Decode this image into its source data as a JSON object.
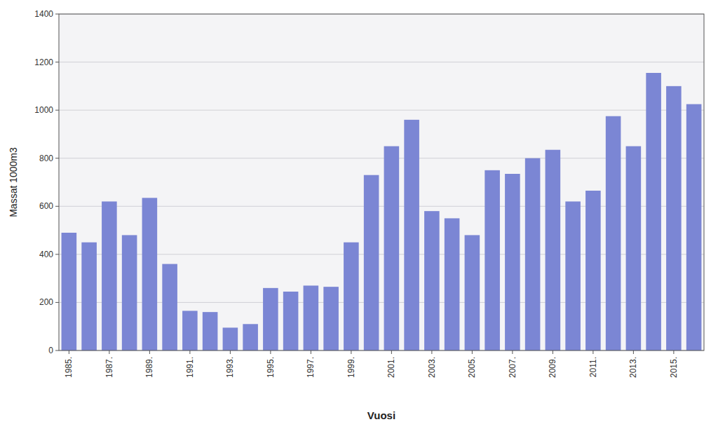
{
  "chart_data": {
    "type": "bar",
    "x_label": "Vuosi",
    "y_label": "Massat 1000m3",
    "categories": [
      "1985.",
      null,
      "1987.",
      null,
      "1989.",
      null,
      "1991.",
      null,
      "1993.",
      null,
      "1995.",
      null,
      "1997.",
      null,
      "1999.",
      null,
      "2001.",
      null,
      "2003.",
      null,
      "2005.",
      null,
      "2007.",
      null,
      "2009.",
      null,
      "2011.",
      null,
      "2013.",
      null,
      "2015.",
      null
    ],
    "values": [
      490,
      450,
      620,
      480,
      635,
      360,
      165,
      160,
      95,
      110,
      260,
      245,
      270,
      265,
      450,
      730,
      850,
      960,
      580,
      550,
      480,
      750,
      735,
      800,
      835,
      620,
      665,
      975,
      850,
      1155,
      1100,
      1025
    ],
    "color": "#7B86D4",
    "ylim": [
      0,
      1400
    ],
    "yticks": [
      0,
      200,
      400,
      600,
      800,
      1000,
      1200,
      1400
    ],
    "grid": true
  }
}
